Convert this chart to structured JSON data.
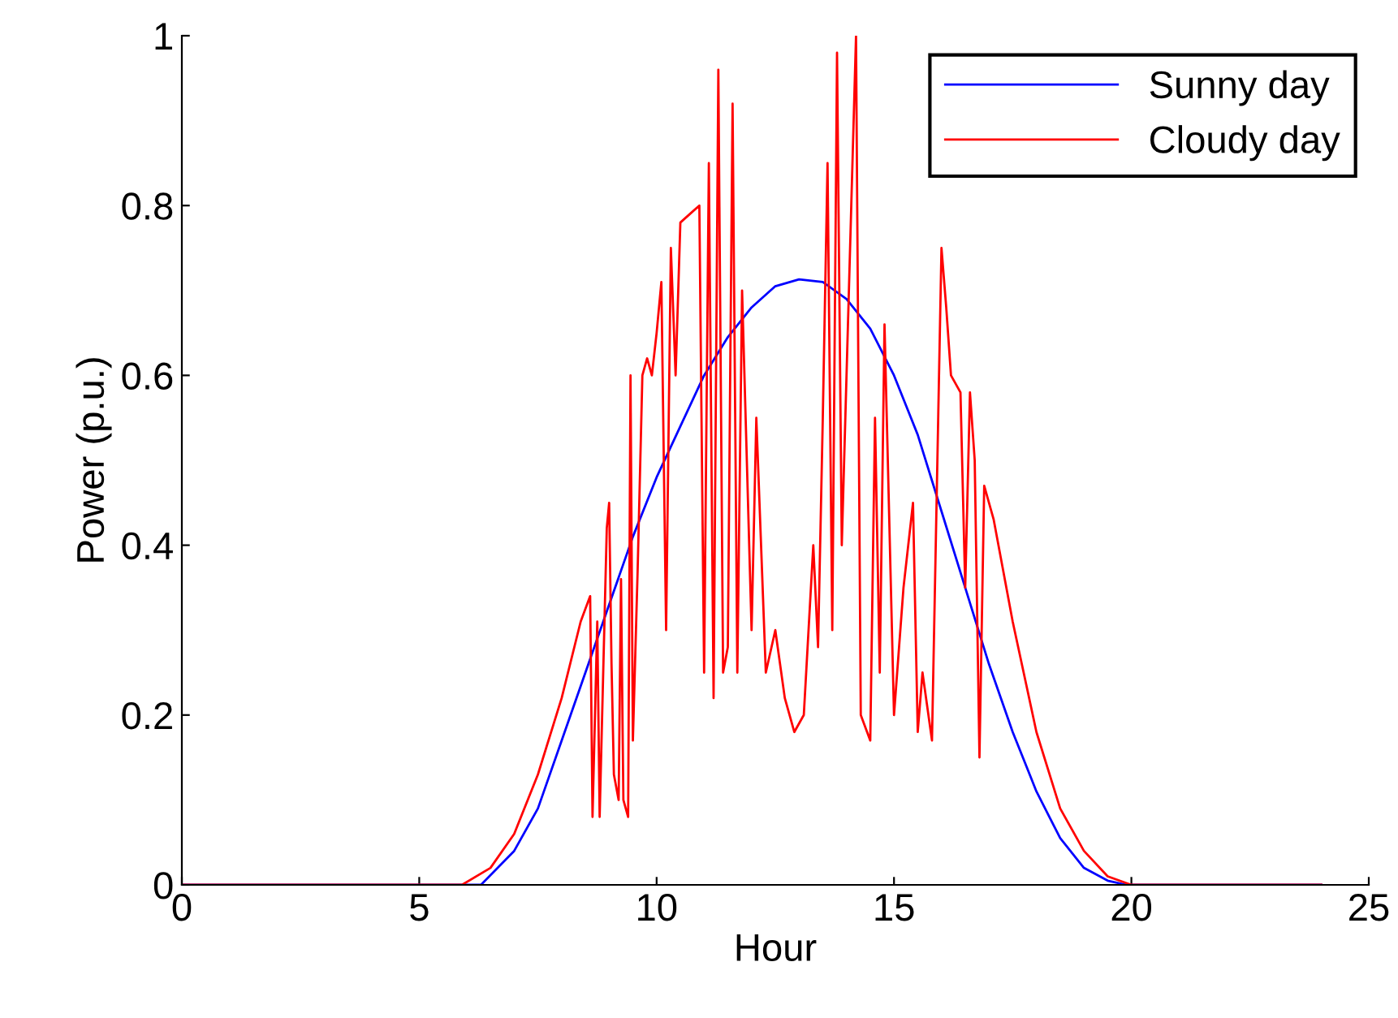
{
  "chart_data": {
    "type": "line",
    "xlabel": "Hour",
    "ylabel": "Power (p.u.)",
    "xlim": [
      0,
      25
    ],
    "xticks": [
      0,
      5,
      10,
      15,
      20,
      25
    ],
    "ylim": [
      0,
      1
    ],
    "yticks": [
      0,
      0.2,
      0.4,
      0.6,
      0.8,
      1
    ],
    "grid": false,
    "legend": "top right",
    "marker": "none",
    "line_style": "solid",
    "series": [
      {
        "name": "Sunny day",
        "color": "#0000ff",
        "x": [
          0,
          6.3,
          7,
          7.5,
          8,
          8.5,
          9,
          9.5,
          10,
          10.5,
          11,
          11.5,
          12,
          12.5,
          13,
          13.5,
          14,
          14.5,
          15,
          15.5,
          16,
          16.5,
          17,
          17.5,
          18,
          18.5,
          19,
          19.5,
          19.9,
          24
        ],
        "values": [
          0,
          0,
          0.04,
          0.09,
          0.17,
          0.25,
          0.33,
          0.41,
          0.48,
          0.54,
          0.6,
          0.645,
          0.68,
          0.705,
          0.713,
          0.71,
          0.69,
          0.655,
          0.6,
          0.53,
          0.44,
          0.35,
          0.26,
          0.18,
          0.11,
          0.055,
          0.02,
          0.005,
          0,
          0
        ]
      },
      {
        "name": "Cloudy day",
        "color": "#ff0000",
        "x": [
          0,
          5.9,
          6.5,
          7,
          7.5,
          8,
          8.4,
          8.6,
          8.65,
          8.75,
          8.8,
          8.95,
          9,
          9.05,
          9.1,
          9.2,
          9.25,
          9.3,
          9.4,
          9.45,
          9.5,
          9.6,
          9.7,
          9.8,
          9.9,
          10,
          10.1,
          10.2,
          10.3,
          10.4,
          10.5,
          10.7,
          10.9,
          11,
          11.1,
          11.2,
          11.3,
          11.4,
          11.5,
          11.6,
          11.7,
          11.8,
          12,
          12.1,
          12.3,
          12.5,
          12.7,
          12.9,
          13.1,
          13.3,
          13.4,
          13.5,
          13.6,
          13.7,
          13.8,
          13.9,
          14,
          14.1,
          14.2,
          14.3,
          14.5,
          14.6,
          14.7,
          14.8,
          15,
          15.2,
          15.4,
          15.5,
          15.6,
          15.8,
          16,
          16.1,
          16.2,
          16.4,
          16.5,
          16.6,
          16.7,
          16.8,
          16.9,
          17.1,
          17.5,
          18,
          18.5,
          19,
          19.5,
          20,
          24
        ],
        "values": [
          0,
          0,
          0.02,
          0.06,
          0.13,
          0.22,
          0.31,
          0.34,
          0.08,
          0.31,
          0.08,
          0.42,
          0.45,
          0.26,
          0.13,
          0.1,
          0.36,
          0.1,
          0.08,
          0.6,
          0.17,
          0.37,
          0.6,
          0.62,
          0.6,
          0.65,
          0.71,
          0.3,
          0.75,
          0.6,
          0.78,
          0.79,
          0.8,
          0.25,
          0.85,
          0.22,
          0.96,
          0.25,
          0.28,
          0.92,
          0.25,
          0.7,
          0.3,
          0.55,
          0.25,
          0.3,
          0.22,
          0.18,
          0.2,
          0.4,
          0.28,
          0.55,
          0.85,
          0.3,
          0.98,
          0.4,
          0.6,
          0.8,
          1,
          0.2,
          0.17,
          0.55,
          0.25,
          0.66,
          0.2,
          0.35,
          0.45,
          0.18,
          0.25,
          0.17,
          0.75,
          0.68,
          0.6,
          0.58,
          0.35,
          0.58,
          0.5,
          0.15,
          0.47,
          0.43,
          0.31,
          0.18,
          0.09,
          0.04,
          0.01,
          0,
          0
        ]
      }
    ]
  }
}
